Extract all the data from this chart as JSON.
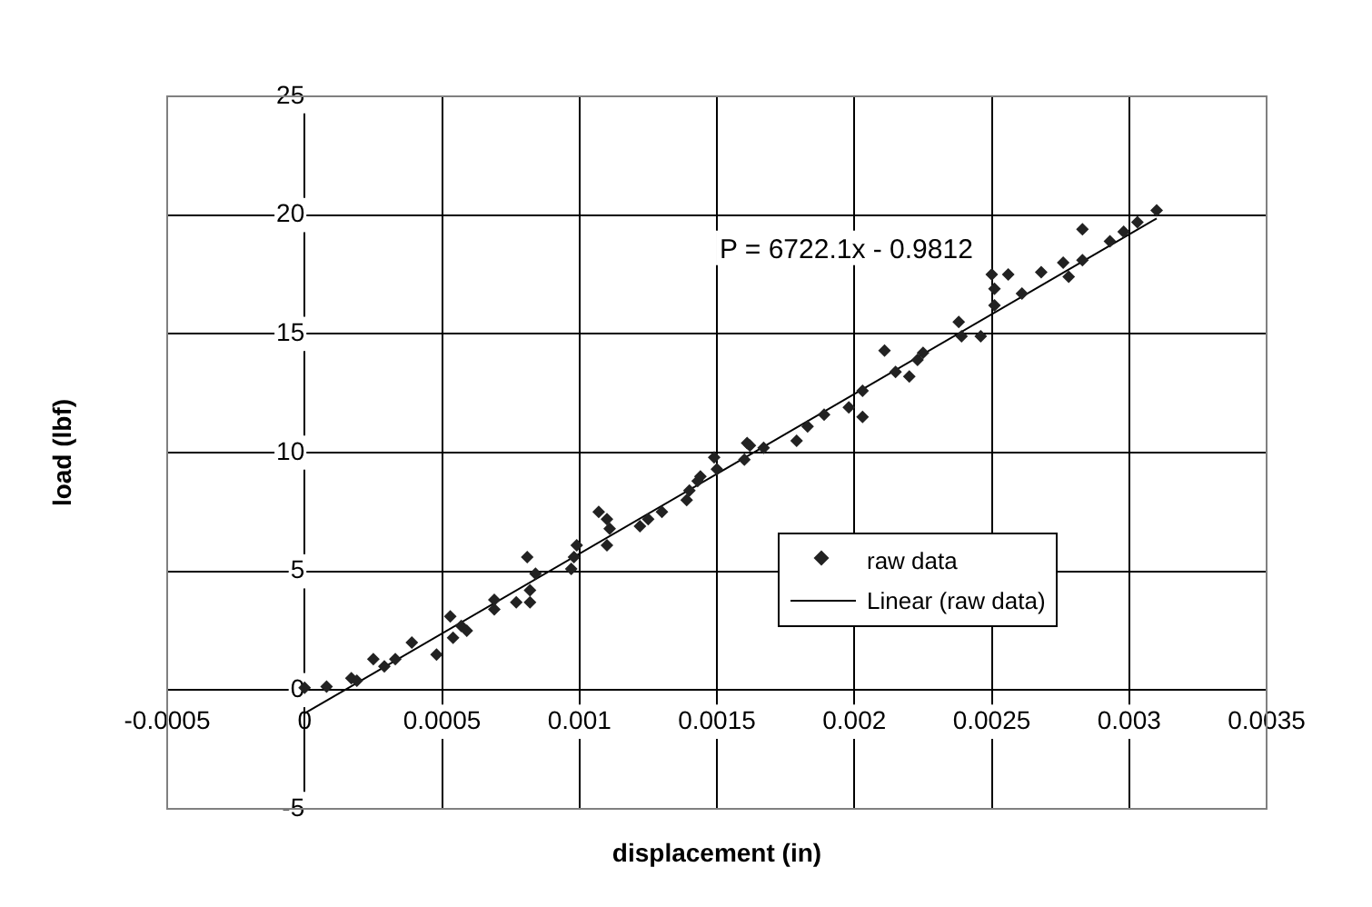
{
  "chart_data": {
    "type": "scatter",
    "xlabel": "displacement (in)",
    "ylabel": "load (lbf)",
    "annotations": [
      "P = 6722.1x - 0.9812"
    ],
    "xlim": [
      -0.0005,
      0.0035
    ],
    "xticks": [
      -0.0005,
      0,
      0.0005,
      0.001,
      0.0015,
      0.002,
      0.0025,
      0.003,
      0.0035
    ],
    "ylim": [
      -5,
      25
    ],
    "yticks": [
      -5,
      0,
      5,
      10,
      15,
      20,
      25
    ],
    "grid": true,
    "legend": "bottom right",
    "marker": "diamond",
    "series": [
      {
        "name": "raw data",
        "color": "#222222",
        "x": [
          0,
          8e-05,
          0.00017,
          0.00019,
          0.00025,
          0.00029,
          0.00033,
          0.00039,
          0.00048,
          0.00053,
          0.00054,
          0.00057,
          0.00059,
          0.00069,
          0.00069,
          0.00077,
          0.00081,
          0.00082,
          0.00082,
          0.00084,
          0.00097,
          0.00098,
          0.00099,
          0.00107,
          0.0011,
          0.0011,
          0.00111,
          0.00122,
          0.00125,
          0.0013,
          0.00139,
          0.0014,
          0.00143,
          0.00144,
          0.00149,
          0.0015,
          0.0016,
          0.00161,
          0.00162,
          0.00167,
          0.00179,
          0.00183,
          0.00189,
          0.00198,
          0.00203,
          0.00203,
          0.00211,
          0.00215,
          0.0022,
          0.00223,
          0.00225,
          0.00238,
          0.00239,
          0.00246,
          0.0025,
          0.00251,
          0.00251,
          0.00256,
          0.00261,
          0.00268,
          0.00276,
          0.00278,
          0.00283,
          0.00283,
          0.00293,
          0.00298,
          0.00303,
          0.0031
        ],
        "values": [
          0.1,
          0.15,
          0.5,
          0.4,
          1.3,
          1.0,
          1.3,
          2.0,
          1.5,
          3.1,
          2.2,
          2.7,
          2.5,
          3.8,
          3.4,
          3.7,
          5.6,
          3.7,
          4.2,
          4.9,
          5.1,
          5.6,
          6.1,
          7.5,
          6.1,
          7.2,
          6.8,
          6.9,
          7.2,
          7.5,
          8.0,
          8.4,
          8.8,
          9.0,
          9.8,
          9.3,
          9.7,
          10.4,
          10.3,
          10.2,
          10.5,
          11.1,
          11.6,
          11.9,
          12.6,
          11.5,
          14.3,
          13.4,
          13.2,
          13.9,
          14.2,
          15.5,
          14.9,
          14.9,
          17.5,
          16.9,
          16.2,
          17.5,
          16.7,
          17.6,
          18.0,
          17.4,
          18.1,
          19.4,
          18.9,
          19.3,
          19.7,
          20.2
        ]
      },
      {
        "name": "Linear (raw data)",
        "type": "line",
        "color": "#000000",
        "line_style": "solid",
        "marker": "none",
        "x": [
          0,
          0.0031
        ],
        "values": [
          -0.98,
          19.86
        ]
      }
    ]
  }
}
